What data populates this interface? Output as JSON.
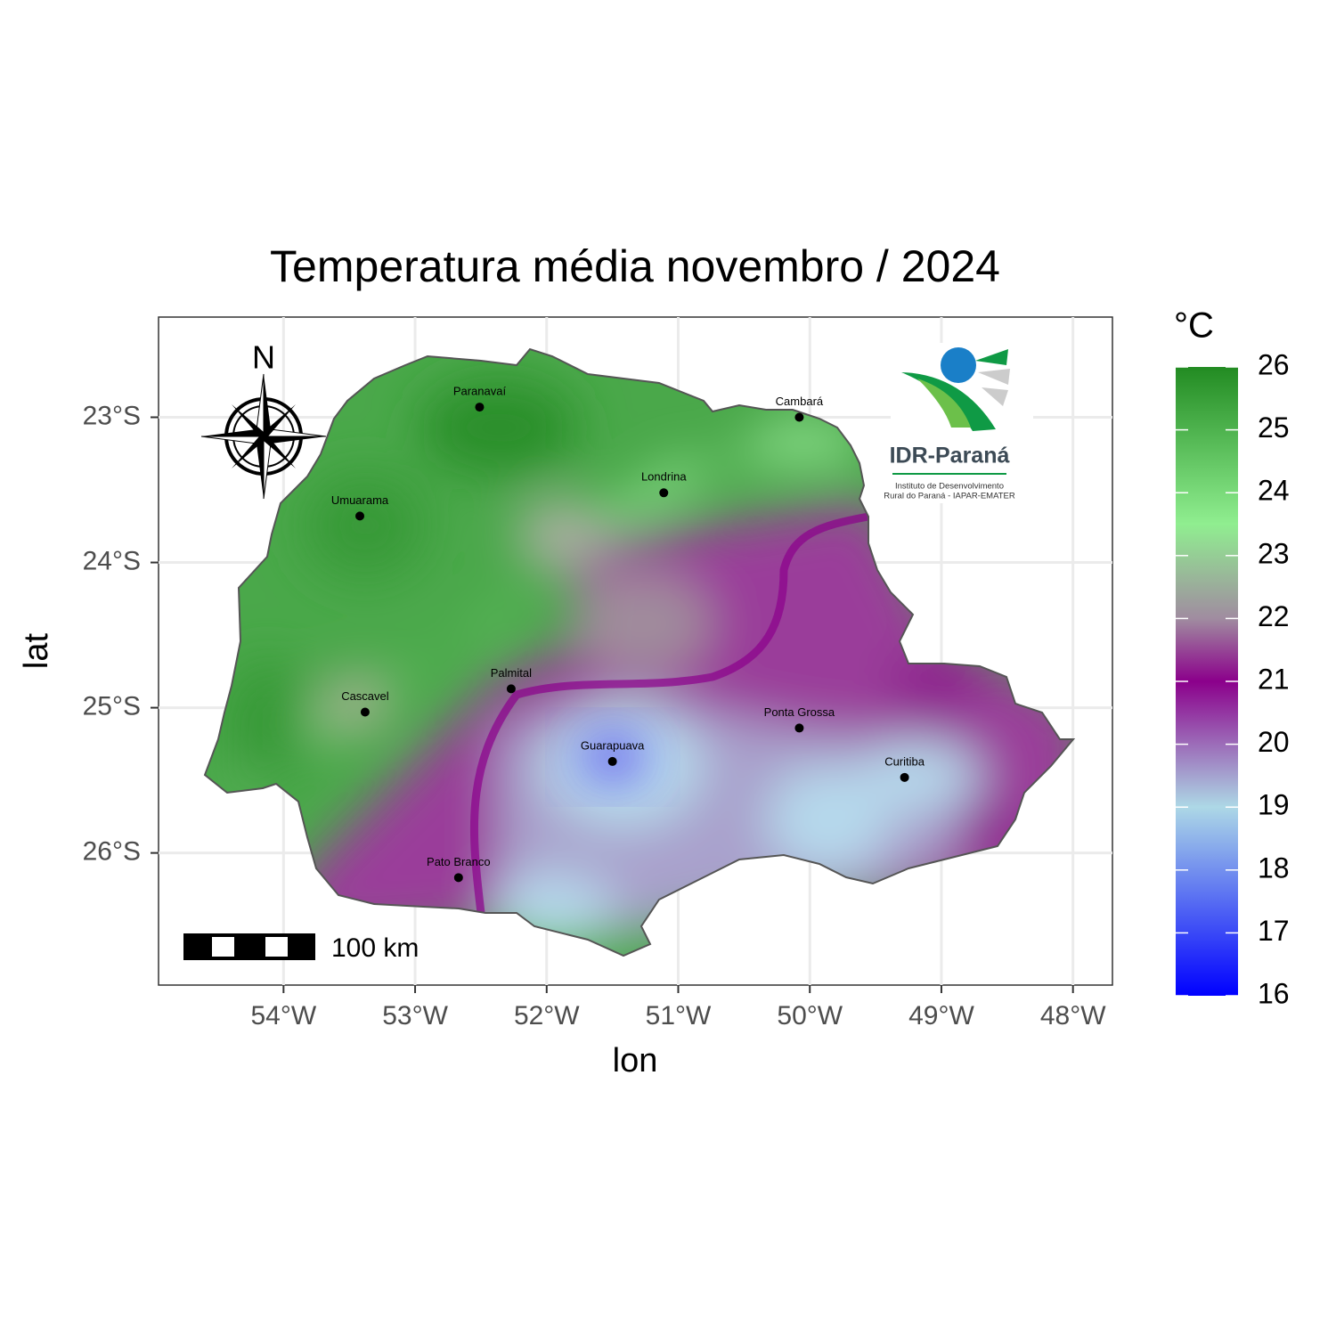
{
  "chart_data": {
    "type": "map",
    "title": "Temperatura média novembro / 2024",
    "x_label": "lon",
    "y_label": "lat",
    "xlim": [
      -54.95,
      -47.7
    ],
    "ylim": [
      -26.91,
      -22.31
    ],
    "xticks": [
      {
        "value": -54,
        "label": "54°W"
      },
      {
        "value": -53,
        "label": "53°W"
      },
      {
        "value": -52,
        "label": "52°W"
      },
      {
        "value": -51,
        "label": "51°W"
      },
      {
        "value": -50,
        "label": "50°W"
      },
      {
        "value": -49,
        "label": "49°W"
      },
      {
        "value": -48,
        "label": "48°W"
      }
    ],
    "yticks": [
      {
        "value": -23,
        "label": "23°S"
      },
      {
        "value": -24,
        "label": "24°S"
      },
      {
        "value": -25,
        "label": "25°S"
      },
      {
        "value": -26,
        "label": "26°S"
      }
    ],
    "grid": true,
    "cities": [
      {
        "name": "Paranavaí",
        "lon": -52.51,
        "lat": -22.93
      },
      {
        "name": "Cambará",
        "lon": -50.08,
        "lat": -23.0
      },
      {
        "name": "Londrina",
        "lon": -51.11,
        "lat": -23.52
      },
      {
        "name": "Umuarama",
        "lon": -53.42,
        "lat": -23.68
      },
      {
        "name": "Palmital",
        "lon": -52.27,
        "lat": -24.87
      },
      {
        "name": "Cascavel",
        "lon": -53.38,
        "lat": -25.03
      },
      {
        "name": "Ponta Grossa",
        "lon": -50.08,
        "lat": -25.14
      },
      {
        "name": "Guarapuava",
        "lon": -51.5,
        "lat": -25.37
      },
      {
        "name": "Curitiba",
        "lon": -49.28,
        "lat": -25.48
      },
      {
        "name": "Pato Branco",
        "lon": -52.67,
        "lat": -26.17
      }
    ],
    "legend": {
      "title": "°C",
      "lim": [
        16,
        26
      ],
      "ticks": [
        16,
        17,
        18,
        19,
        20,
        21,
        22,
        23,
        24,
        25,
        26
      ],
      "colorscale": [
        {
          "value": 16,
          "color": "#0000ff"
        },
        {
          "value": 19,
          "color": "#add8e6"
        },
        {
          "value": 21,
          "color": "#8b008b"
        },
        {
          "value": 22,
          "color": "#a08ca0"
        },
        {
          "value": 23.5,
          "color": "#90ee90"
        },
        {
          "value": 26,
          "color": "#228b22"
        }
      ]
    },
    "scale_bar": "100 km",
    "north": "N",
    "logo": {
      "name": "IDR-Paraná",
      "line1": "Instituto de Desenvolvimento",
      "line2": "Rural do Paraná - IAPAR-EMATER"
    }
  }
}
